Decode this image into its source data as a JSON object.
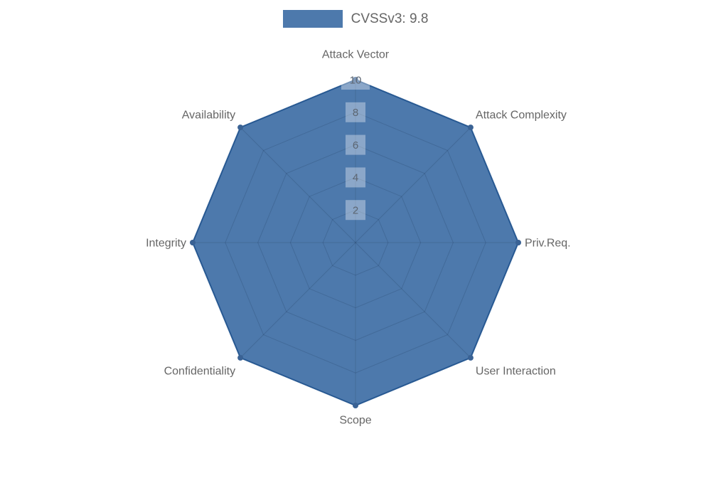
{
  "legend": {
    "label": "CVSSv3: 9.8",
    "swatch_color": "rgba(33,88,151,0.8)",
    "text_color": "#666666"
  },
  "chart_data": {
    "type": "radar",
    "title": "",
    "categories": [
      "Attack Vector",
      "Attack Complexity",
      "Priv.Req.",
      "User Interaction",
      "Scope",
      "Confidentiality",
      "Integrity",
      "Availability"
    ],
    "series": [
      {
        "name": "CVSSv3: 9.8",
        "values": [
          10,
          10,
          10,
          10,
          10,
          10,
          10,
          10
        ]
      }
    ],
    "rmin": 0,
    "rmax": 10,
    "ticks": [
      2,
      4,
      6,
      8,
      10
    ],
    "grid": "polygon",
    "grid_on": true,
    "legend_position": "top",
    "colors": {
      "fill": "rgba(33,88,151,0.8)",
      "border": "rgba(33,88,151,0.9)",
      "point": "#3a6294",
      "grid_line": "rgba(10,30,55,0.16)",
      "tick_text": "#5c6672",
      "tick_backdrop": "rgba(255,255,255,0.35)",
      "axis_label_color": "#666666"
    }
  }
}
